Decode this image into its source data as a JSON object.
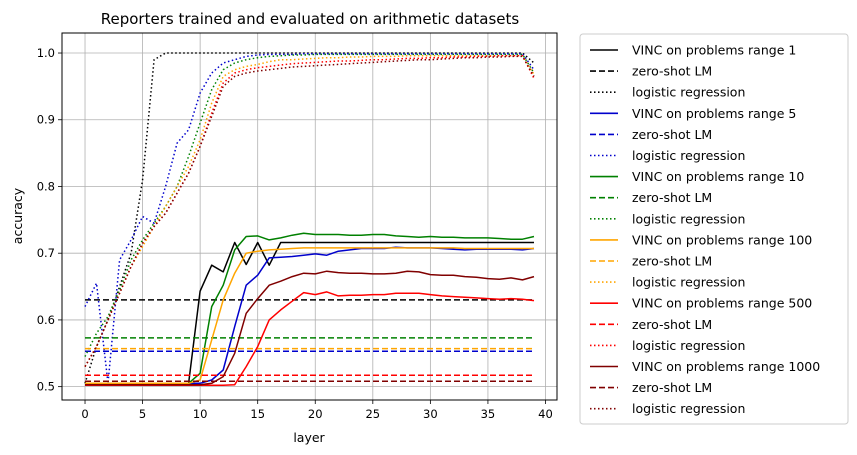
{
  "chart_data": {
    "type": "line",
    "title": "Reporters trained and evaluated on arithmetic datasets",
    "xlabel": "layer",
    "ylabel": "accuracy",
    "xlim": [
      -2,
      41
    ],
    "ylim": [
      0.48,
      1.03
    ],
    "xticks": [
      0,
      5,
      10,
      15,
      20,
      25,
      30,
      35,
      40
    ],
    "yticks": [
      0.5,
      0.6,
      0.7,
      0.8,
      0.9,
      1.0
    ],
    "ytick_labels": [
      "0.5",
      "0.6",
      "0.7",
      "0.8",
      "0.9",
      "1.0"
    ],
    "grid": true,
    "legend_position": "outside-right",
    "series": [
      {
        "name": "VINC on problems range 1",
        "color": "#000000",
        "style": "solid",
        "x": [
          0,
          1,
          2,
          3,
          4,
          5,
          6,
          7,
          8,
          9,
          10,
          11,
          12,
          13,
          14,
          15,
          16,
          17,
          18,
          19,
          20,
          21,
          22,
          23,
          24,
          25,
          26,
          27,
          28,
          29,
          30,
          31,
          32,
          33,
          34,
          35,
          36,
          37,
          38,
          39
        ],
        "y": [
          0.505,
          0.505,
          0.505,
          0.505,
          0.505,
          0.505,
          0.505,
          0.505,
          0.505,
          0.505,
          0.643,
          0.682,
          0.672,
          0.716,
          0.683,
          0.716,
          0.682,
          0.716,
          0.716,
          0.716,
          0.716,
          0.716,
          0.716,
          0.716,
          0.716,
          0.716,
          0.716,
          0.716,
          0.716,
          0.716,
          0.716,
          0.716,
          0.716,
          0.716,
          0.716,
          0.716,
          0.716,
          0.716,
          0.716,
          0.716
        ]
      },
      {
        "name": "zero-shot LM",
        "color": "#000000",
        "style": "dashed",
        "x": [
          0,
          39
        ],
        "y": [
          0.63,
          0.63
        ]
      },
      {
        "name": "logistic regression",
        "color": "#000000",
        "style": "dotted",
        "x": [
          0,
          1,
          2,
          3,
          4,
          5,
          6,
          7,
          8,
          9,
          10,
          11,
          12,
          13,
          14,
          15,
          16,
          17,
          18,
          19,
          20,
          21,
          22,
          23,
          24,
          25,
          26,
          27,
          28,
          29,
          30,
          31,
          32,
          33,
          34,
          35,
          36,
          37,
          38,
          39
        ],
        "y": [
          0.505,
          0.56,
          0.6,
          0.65,
          0.7,
          0.81,
          0.99,
          1.0,
          1.0,
          1.0,
          1.0,
          1.0,
          1.0,
          1.0,
          1.0,
          1.0,
          1.0,
          1.0,
          1.0,
          1.0,
          1.0,
          1.0,
          1.0,
          1.0,
          1.0,
          1.0,
          1.0,
          1.0,
          1.0,
          1.0,
          1.0,
          1.0,
          1.0,
          1.0,
          1.0,
          1.0,
          1.0,
          1.0,
          1.0,
          0.985
        ]
      },
      {
        "name": "VINC on problems range 5",
        "color": "#0000cc",
        "style": "solid",
        "x": [
          0,
          1,
          2,
          3,
          4,
          5,
          6,
          7,
          8,
          9,
          10,
          11,
          12,
          13,
          14,
          15,
          16,
          17,
          18,
          19,
          20,
          21,
          22,
          23,
          24,
          25,
          26,
          27,
          28,
          29,
          30,
          31,
          32,
          33,
          34,
          35,
          36,
          37,
          38,
          39
        ],
        "y": [
          0.505,
          0.505,
          0.505,
          0.505,
          0.505,
          0.505,
          0.505,
          0.505,
          0.505,
          0.505,
          0.505,
          0.51,
          0.525,
          0.59,
          0.652,
          0.667,
          0.693,
          0.694,
          0.695,
          0.697,
          0.699,
          0.697,
          0.703,
          0.705,
          0.707,
          0.707,
          0.707,
          0.709,
          0.708,
          0.708,
          0.708,
          0.707,
          0.706,
          0.705,
          0.706,
          0.706,
          0.706,
          0.706,
          0.705,
          0.707
        ]
      },
      {
        "name": "zero-shot LM",
        "color": "#0000cc",
        "style": "dashed",
        "x": [
          0,
          39
        ],
        "y": [
          0.553,
          0.553
        ]
      },
      {
        "name": "logistic regression",
        "color": "#0000cc",
        "style": "dotted",
        "x": [
          0,
          1,
          2,
          3,
          4,
          5,
          6,
          7,
          8,
          9,
          10,
          11,
          12,
          13,
          14,
          15,
          16,
          17,
          18,
          19,
          20,
          21,
          22,
          23,
          24,
          25,
          26,
          27,
          28,
          29,
          30,
          31,
          32,
          33,
          34,
          35,
          36,
          37,
          38,
          39
        ],
        "y": [
          0.62,
          0.655,
          0.505,
          0.69,
          0.72,
          0.755,
          0.745,
          0.8,
          0.865,
          0.885,
          0.94,
          0.97,
          0.985,
          0.99,
          0.995,
          0.997,
          0.998,
          0.998,
          0.998,
          0.999,
          0.999,
          0.999,
          0.999,
          0.999,
          0.999,
          0.999,
          0.999,
          0.999,
          0.999,
          0.999,
          0.999,
          0.999,
          0.999,
          0.999,
          0.999,
          0.999,
          0.999,
          0.999,
          0.999,
          0.975
        ]
      },
      {
        "name": "VINC on problems range 10",
        "color": "#008000",
        "style": "solid",
        "x": [
          0,
          1,
          2,
          3,
          4,
          5,
          6,
          7,
          8,
          9,
          10,
          11,
          12,
          13,
          14,
          15,
          16,
          17,
          18,
          19,
          20,
          21,
          22,
          23,
          24,
          25,
          26,
          27,
          28,
          29,
          30,
          31,
          32,
          33,
          34,
          35,
          36,
          37,
          38,
          39
        ],
        "y": [
          0.505,
          0.505,
          0.505,
          0.505,
          0.505,
          0.505,
          0.505,
          0.505,
          0.505,
          0.505,
          0.52,
          0.62,
          0.652,
          0.705,
          0.725,
          0.726,
          0.72,
          0.723,
          0.727,
          0.73,
          0.728,
          0.728,
          0.728,
          0.727,
          0.727,
          0.728,
          0.728,
          0.726,
          0.725,
          0.724,
          0.725,
          0.724,
          0.724,
          0.723,
          0.723,
          0.723,
          0.722,
          0.721,
          0.721,
          0.725
        ]
      },
      {
        "name": "zero-shot LM",
        "color": "#008000",
        "style": "dashed",
        "x": [
          0,
          39
        ],
        "y": [
          0.573,
          0.573
        ]
      },
      {
        "name": "logistic regression",
        "color": "#008000",
        "style": "dotted",
        "x": [
          0,
          1,
          2,
          3,
          4,
          5,
          6,
          7,
          8,
          9,
          10,
          11,
          12,
          13,
          14,
          15,
          16,
          17,
          18,
          19,
          20,
          21,
          22,
          23,
          24,
          25,
          26,
          27,
          28,
          29,
          30,
          31,
          32,
          33,
          34,
          35,
          36,
          37,
          38,
          39
        ],
        "y": [
          0.545,
          0.58,
          0.605,
          0.645,
          0.69,
          0.72,
          0.745,
          0.77,
          0.8,
          0.845,
          0.895,
          0.945,
          0.975,
          0.985,
          0.99,
          0.993,
          0.995,
          0.996,
          0.997,
          0.997,
          0.998,
          0.998,
          0.998,
          0.998,
          0.998,
          0.998,
          0.998,
          0.998,
          0.998,
          0.998,
          0.998,
          0.998,
          0.998,
          0.998,
          0.998,
          0.998,
          0.998,
          0.998,
          0.998,
          0.97
        ]
      },
      {
        "name": "VINC on problems range 100",
        "color": "#ffa500",
        "style": "solid",
        "x": [
          0,
          1,
          2,
          3,
          4,
          5,
          6,
          7,
          8,
          9,
          10,
          11,
          12,
          13,
          14,
          15,
          16,
          17,
          18,
          19,
          20,
          21,
          22,
          23,
          24,
          25,
          26,
          27,
          28,
          29,
          30,
          31,
          32,
          33,
          34,
          35,
          36,
          37,
          38,
          39
        ],
        "y": [
          0.505,
          0.505,
          0.505,
          0.505,
          0.505,
          0.505,
          0.505,
          0.505,
          0.505,
          0.505,
          0.51,
          0.57,
          0.63,
          0.67,
          0.7,
          0.703,
          0.705,
          0.706,
          0.707,
          0.708,
          0.708,
          0.708,
          0.708,
          0.708,
          0.708,
          0.708,
          0.708,
          0.708,
          0.708,
          0.708,
          0.708,
          0.708,
          0.708,
          0.707,
          0.707,
          0.707,
          0.707,
          0.707,
          0.707,
          0.707
        ]
      },
      {
        "name": "zero-shot LM",
        "color": "#ffa500",
        "style": "dashed",
        "x": [
          0,
          39
        ],
        "y": [
          0.557,
          0.557
        ]
      },
      {
        "name": "logistic regression",
        "color": "#ffa500",
        "style": "dotted",
        "x": [
          0,
          1,
          2,
          3,
          4,
          5,
          6,
          7,
          8,
          9,
          10,
          11,
          12,
          13,
          14,
          15,
          16,
          17,
          18,
          19,
          20,
          21,
          22,
          23,
          24,
          25,
          26,
          27,
          28,
          29,
          30,
          31,
          32,
          33,
          34,
          35,
          36,
          37,
          38,
          39
        ],
        "y": [
          0.53,
          0.56,
          0.6,
          0.64,
          0.68,
          0.71,
          0.74,
          0.77,
          0.8,
          0.83,
          0.87,
          0.925,
          0.965,
          0.975,
          0.98,
          0.983,
          0.987,
          0.99,
          0.99,
          0.991,
          0.992,
          0.993,
          0.993,
          0.994,
          0.994,
          0.995,
          0.995,
          0.995,
          0.996,
          0.996,
          0.996,
          0.996,
          0.996,
          0.996,
          0.996,
          0.996,
          0.996,
          0.996,
          0.996,
          0.968
        ]
      },
      {
        "name": "VINC on problems range 500",
        "color": "#ff0000",
        "style": "solid",
        "x": [
          0,
          1,
          2,
          3,
          4,
          5,
          6,
          7,
          8,
          9,
          10,
          11,
          12,
          13,
          14,
          15,
          16,
          17,
          18,
          19,
          20,
          21,
          22,
          23,
          24,
          25,
          26,
          27,
          28,
          29,
          30,
          31,
          32,
          33,
          34,
          35,
          36,
          37,
          38,
          39
        ],
        "y": [
          0.502,
          0.502,
          0.502,
          0.502,
          0.502,
          0.502,
          0.502,
          0.502,
          0.502,
          0.502,
          0.502,
          0.502,
          0.502,
          0.503,
          0.53,
          0.56,
          0.6,
          0.615,
          0.628,
          0.641,
          0.638,
          0.642,
          0.636,
          0.637,
          0.637,
          0.638,
          0.638,
          0.64,
          0.64,
          0.64,
          0.638,
          0.636,
          0.635,
          0.634,
          0.633,
          0.632,
          0.631,
          0.632,
          0.631,
          0.629
        ]
      },
      {
        "name": "zero-shot LM",
        "color": "#ff0000",
        "style": "dashed",
        "x": [
          0,
          39
        ],
        "y": [
          0.517,
          0.517
        ]
      },
      {
        "name": "logistic regression",
        "color": "#ff0000",
        "style": "dotted",
        "x": [
          0,
          1,
          2,
          3,
          4,
          5,
          6,
          7,
          8,
          9,
          10,
          11,
          12,
          13,
          14,
          15,
          16,
          17,
          18,
          19,
          20,
          21,
          22,
          23,
          24,
          25,
          26,
          27,
          28,
          29,
          30,
          31,
          32,
          33,
          34,
          35,
          36,
          37,
          38,
          39
        ],
        "y": [
          0.53,
          0.56,
          0.6,
          0.64,
          0.68,
          0.715,
          0.74,
          0.76,
          0.79,
          0.82,
          0.86,
          0.91,
          0.955,
          0.97,
          0.975,
          0.978,
          0.98,
          0.982,
          0.984,
          0.985,
          0.986,
          0.987,
          0.988,
          0.988,
          0.989,
          0.99,
          0.99,
          0.991,
          0.992,
          0.992,
          0.993,
          0.993,
          0.994,
          0.994,
          0.995,
          0.995,
          0.996,
          0.996,
          0.996,
          0.962
        ]
      },
      {
        "name": "VINC on problems range 1000",
        "color": "#800000",
        "style": "solid",
        "x": [
          0,
          1,
          2,
          3,
          4,
          5,
          6,
          7,
          8,
          9,
          10,
          11,
          12,
          13,
          14,
          15,
          16,
          17,
          18,
          19,
          20,
          21,
          22,
          23,
          24,
          25,
          26,
          27,
          28,
          29,
          30,
          31,
          32,
          33,
          34,
          35,
          36,
          37,
          38,
          39
        ],
        "y": [
          0.503,
          0.503,
          0.503,
          0.503,
          0.503,
          0.503,
          0.503,
          0.503,
          0.503,
          0.503,
          0.503,
          0.505,
          0.515,
          0.55,
          0.61,
          0.632,
          0.652,
          0.658,
          0.665,
          0.67,
          0.669,
          0.673,
          0.671,
          0.67,
          0.67,
          0.669,
          0.669,
          0.67,
          0.673,
          0.672,
          0.668,
          0.667,
          0.667,
          0.665,
          0.664,
          0.662,
          0.661,
          0.663,
          0.66,
          0.665
        ]
      },
      {
        "name": "zero-shot LM",
        "color": "#800000",
        "style": "dashed",
        "x": [
          0,
          39
        ],
        "y": [
          0.508,
          0.508
        ]
      },
      {
        "name": "logistic regression",
        "color": "#800000",
        "style": "dotted",
        "x": [
          0,
          1,
          2,
          3,
          4,
          5,
          6,
          7,
          8,
          9,
          10,
          11,
          12,
          13,
          14,
          15,
          16,
          17,
          18,
          19,
          20,
          21,
          22,
          23,
          24,
          25,
          26,
          27,
          28,
          29,
          30,
          31,
          32,
          33,
          34,
          35,
          36,
          37,
          38,
          39
        ],
        "y": [
          0.53,
          0.56,
          0.6,
          0.64,
          0.68,
          0.715,
          0.74,
          0.76,
          0.79,
          0.82,
          0.86,
          0.905,
          0.95,
          0.965,
          0.97,
          0.973,
          0.975,
          0.977,
          0.979,
          0.98,
          0.981,
          0.982,
          0.983,
          0.984,
          0.985,
          0.986,
          0.987,
          0.988,
          0.989,
          0.99,
          0.99,
          0.991,
          0.992,
          0.993,
          0.993,
          0.994,
          0.994,
          0.995,
          0.995,
          0.965
        ]
      }
    ]
  }
}
